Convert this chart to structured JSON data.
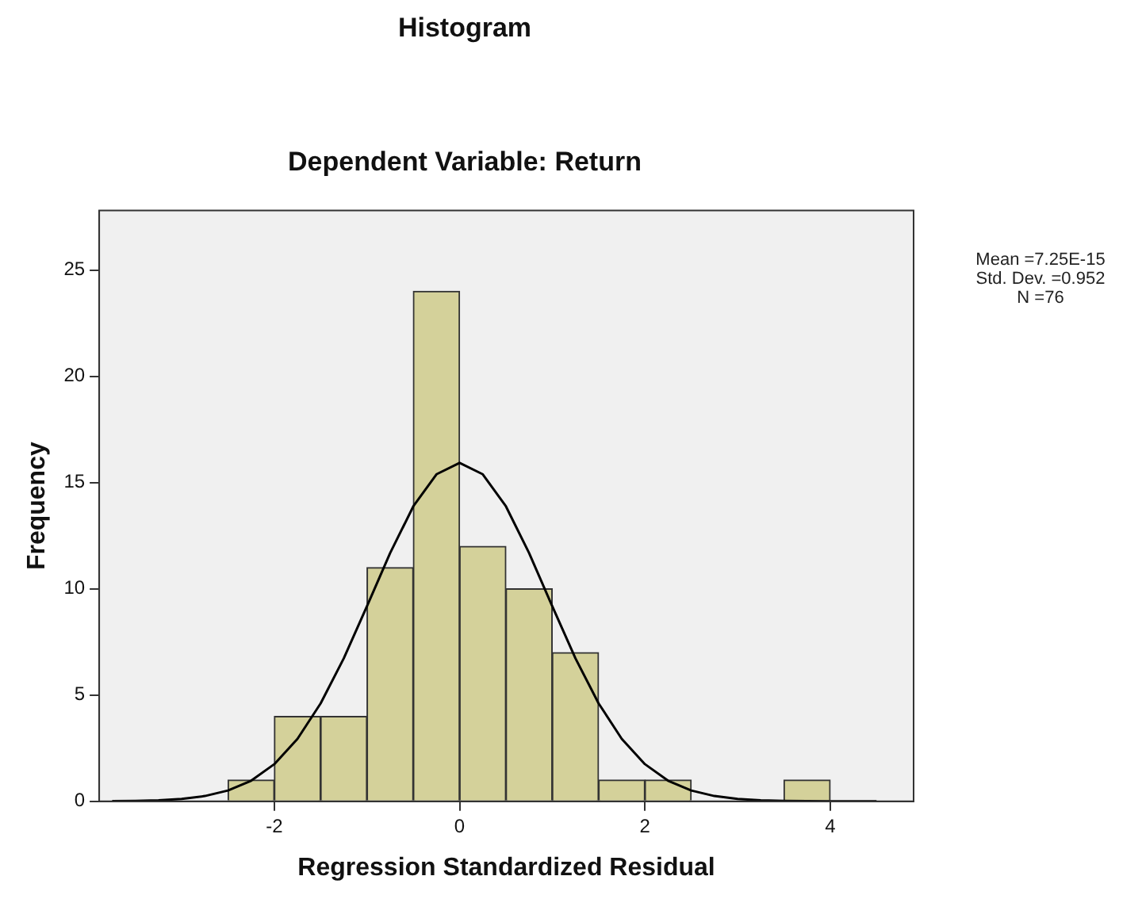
{
  "chart_data": {
    "type": "histogram",
    "title": "Histogram",
    "subtitle": "Dependent Variable: Return",
    "xlabel": "Regression Standardized Residual",
    "ylabel": "Frequency",
    "bins": [
      -2.5,
      -2,
      -1.5,
      -1,
      -0.5,
      0,
      0.5,
      1,
      1.5,
      2,
      2.5,
      3,
      3.5,
      4
    ],
    "values": [
      1,
      4,
      4,
      11,
      24,
      12,
      10,
      7,
      1,
      1,
      0,
      0,
      1
    ],
    "color": "#d4d19a",
    "series": [
      {
        "type": "line",
        "color": "#000000",
        "x": [
          -3.75,
          -3.5,
          -3.25,
          -3,
          -2.75,
          -2.5,
          -2.25,
          -2,
          -1.75,
          -1.5,
          -1.25,
          -1,
          -0.75,
          -0.5,
          -0.25,
          0,
          0.25,
          0.5,
          0.75,
          1,
          1.25,
          1.5,
          1.75,
          2,
          2.25,
          2.5,
          2.75,
          3,
          3.25,
          3.5,
          3.75,
          4,
          4.25,
          4.5
        ],
        "values": [
          0.01,
          0.02,
          0.05,
          0.11,
          0.25,
          0.51,
          0.97,
          1.75,
          2.94,
          4.61,
          6.73,
          9.18,
          11.68,
          13.88,
          15.39,
          15.93,
          15.39,
          13.88,
          11.68,
          9.18,
          6.73,
          4.61,
          2.94,
          1.75,
          0.97,
          0.51,
          0.25,
          0.11,
          0.05,
          0.02,
          0.01,
          0,
          0,
          0
        ]
      }
    ],
    "xlim": [
      -3.89,
      4.9
    ],
    "xticks": [
      -2,
      0,
      2,
      4
    ],
    "ylim": [
      0,
      27.8
    ],
    "yticks": [
      0,
      5,
      10,
      15,
      20,
      25
    ],
    "grid": false,
    "legend": false,
    "marker": "none",
    "line_style": "solid",
    "annotations": [
      "Mean =7.25E-15",
      "Std. Dev. =0.952",
      "N =76"
    ]
  }
}
